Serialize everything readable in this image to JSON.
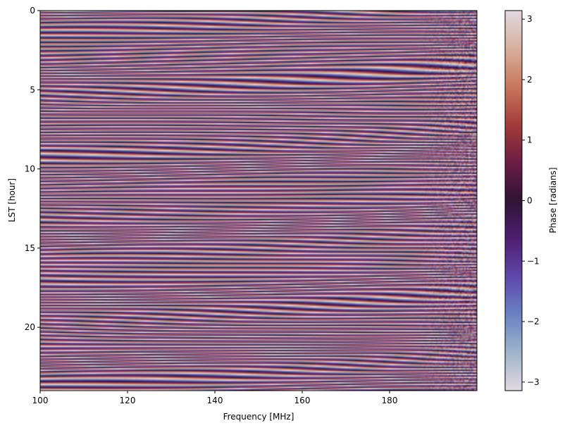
{
  "chart_data": {
    "type": "heatmap",
    "title": "",
    "xlabel": "Frequency [MHz]",
    "ylabel": "LST [hour]",
    "xlim": [
      100,
      200
    ],
    "ylim": [
      24,
      0
    ],
    "x_ticks": [
      100,
      120,
      140,
      160,
      180
    ],
    "y_ticks": [
      0,
      5,
      10,
      15,
      20
    ],
    "colorbar": {
      "label": "Phase [radians]",
      "range": [
        -3.1416,
        3.1416
      ],
      "ticks": [
        3,
        2,
        1,
        0,
        -1,
        -2,
        -3
      ],
      "tick_labels": [
        "3",
        "2",
        "1",
        "0",
        "−1",
        "−2",
        "−3"
      ],
      "colormap": "twilight",
      "colormap_stops": [
        "#e2d9e2",
        "#a0b4ca",
        "#6a82c1",
        "#5f47aa",
        "#4f1f6f",
        "#2f1436",
        "#6b1d44",
        "#a23c3a",
        "#c8775c",
        "#d7b09d",
        "#e2d9e2"
      ]
    },
    "data_description": "Wrapped visibility phase vs LST and frequency; horizontal banded stripes with slowly drifting phase along frequency."
  }
}
